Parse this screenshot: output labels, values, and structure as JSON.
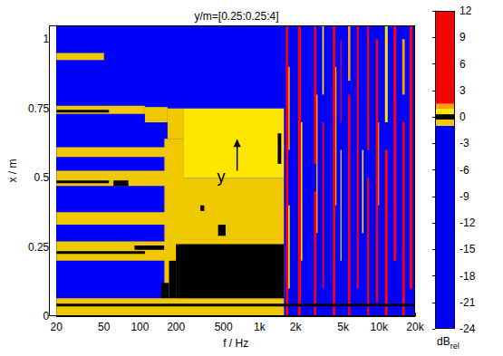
{
  "chart_data": {
    "type": "heatmap",
    "title": "y/m=[0.25:0.25:4]",
    "xlabel": "f / Hz",
    "ylabel": "x / m",
    "log": "x",
    "grid": false,
    "xlim": [
      20,
      20000
    ],
    "xticks": [
      20,
      50,
      100,
      200,
      500,
      {
        "value": 1000,
        "label": "1k"
      },
      {
        "value": 2000,
        "label": "2k"
      },
      {
        "value": 5000,
        "label": "5k"
      },
      {
        "value": 10000,
        "label": "10k"
      },
      {
        "value": 20000,
        "label": "20k"
      }
    ],
    "ylim": [
      0,
      1.05
    ],
    "yticks": [
      0,
      0.25,
      0.5,
      0.75,
      1
    ],
    "annotation": "y",
    "colorbar": {
      "label": "dB",
      "label_subscript": "rel",
      "range": [
        -24,
        12
      ],
      "ticks": [
        12,
        9,
        6,
        3,
        0,
        -3,
        -6,
        -9,
        -12,
        -15,
        -18,
        -21,
        -24
      ],
      "pieces": [
        {
          "range": [
            -24,
            -1
          ],
          "color": "#0000ff"
        },
        {
          "range": [
            -1,
            -0.3
          ],
          "color": "#f0c800"
        },
        {
          "range": [
            -0.3,
            0.3
          ],
          "color": "#000000"
        },
        {
          "range": [
            0.3,
            0.9
          ],
          "color": "#ffe600"
        },
        {
          "range": [
            0.9,
            1.5
          ],
          "color": "#ffa000"
        },
        {
          "range": [
            1.5,
            12
          ],
          "color": "#ff0000"
        }
      ]
    },
    "cells": [
      {
        "f": [
          20,
          20000
        ],
        "x": [
          0,
          1.05
        ],
        "value": -12
      },
      {
        "f": [
          20,
          50
        ],
        "x": [
          0.925,
          0.95
        ],
        "value": -0.6
      },
      {
        "f": [
          20,
          110
        ],
        "x": [
          0.73,
          0.76
        ],
        "value": -0.6
      },
      {
        "f": [
          110,
          170
        ],
        "x": [
          0.7,
          0.755
        ],
        "value": -0.6
      },
      {
        "f": [
          170,
          230
        ],
        "x": [
          0.64,
          0.75
        ],
        "value": -0.6
      },
      {
        "f": [
          20,
          55
        ],
        "x": [
          0.735,
          0.745
        ],
        "value": 0
      },
      {
        "f": [
          20,
          170
        ],
        "x": [
          0.575,
          0.61
        ],
        "value": -0.6
      },
      {
        "f": [
          20,
          165
        ],
        "x": [
          0.47,
          0.525
        ],
        "value": -0.6
      },
      {
        "f": [
          20,
          55
        ],
        "x": [
          0.48,
          0.49
        ],
        "value": 0
      },
      {
        "f": [
          60,
          80
        ],
        "x": [
          0.47,
          0.49
        ],
        "value": 0
      },
      {
        "f": [
          20,
          180
        ],
        "x": [
          0.33,
          0.375
        ],
        "value": -0.6
      },
      {
        "f": [
          20,
          200
        ],
        "x": [
          0.2,
          0.27
        ],
        "value": -0.6
      },
      {
        "f": [
          20,
          110
        ],
        "x": [
          0.225,
          0.235
        ],
        "value": 0
      },
      {
        "f": [
          90,
          160
        ],
        "x": [
          0.24,
          0.255
        ],
        "value": 0
      },
      {
        "f": [
          20,
          1600
        ],
        "x": [
          0,
          0.065
        ],
        "value": -0.6
      },
      {
        "f": [
          160,
          230
        ],
        "x": [
          0.065,
          0.64
        ],
        "value": -0.6
      },
      {
        "f": [
          200,
          1600
        ],
        "x": [
          0.065,
          0.5
        ],
        "value": -0.6
      },
      {
        "f": [
          230,
          1600
        ],
        "x": [
          0.5,
          0.75
        ],
        "value": 0.6
      },
      {
        "f": [
          150,
          175
        ],
        "x": [
          0.065,
          0.12
        ],
        "value": 0
      },
      {
        "f": [
          175,
          200
        ],
        "x": [
          0.065,
          0.2
        ],
        "value": 0
      },
      {
        "f": [
          200,
          1600
        ],
        "x": [
          0.065,
          0.26
        ],
        "value": 0
      },
      {
        "f": [
          450,
          520
        ],
        "x": [
          0.29,
          0.33
        ],
        "value": 0
      },
      {
        "f": [
          320,
          345
        ],
        "x": [
          0.38,
          0.4
        ],
        "value": 0
      },
      {
        "f": [
          1420,
          1520
        ],
        "x": [
          0.55,
          0.66
        ],
        "value": 0
      },
      {
        "f": [
          1660,
          1740
        ],
        "x": [
          0,
          1.05
        ],
        "value": 6
      },
      {
        "f": [
          1740,
          1790
        ],
        "x": [
          0.1,
          0.4
        ],
        "value": 0.6
      },
      {
        "f": [
          1740,
          1790
        ],
        "x": [
          0.6,
          0.9
        ],
        "value": 1.2
      },
      {
        "f": [
          2100,
          2220
        ],
        "x": [
          0,
          1.05
        ],
        "value": 6
      },
      {
        "f": [
          2220,
          2280
        ],
        "x": [
          0.2,
          0.7
        ],
        "value": 0.6
      },
      {
        "f": [
          2850,
          2980
        ],
        "x": [
          0,
          0.45
        ],
        "value": 6
      },
      {
        "f": [
          2850,
          2980
        ],
        "x": [
          0.55,
          1.05
        ],
        "value": 6
      },
      {
        "f": [
          2980,
          3060
        ],
        "x": [
          0.3,
          0.8
        ],
        "value": 1.2
      },
      {
        "f": [
          3350,
          3450
        ],
        "x": [
          0.1,
          0.7
        ],
        "value": 6
      },
      {
        "f": [
          3350,
          3450
        ],
        "x": [
          0.8,
          1.05
        ],
        "value": 0.6
      },
      {
        "f": [
          4100,
          4300
        ],
        "x": [
          0,
          1.05
        ],
        "value": 6
      },
      {
        "f": [
          4300,
          4400
        ],
        "x": [
          0.4,
          0.9
        ],
        "value": 1.2
      },
      {
        "f": [
          4750,
          4850
        ],
        "x": [
          0.2,
          0.6
        ],
        "value": 0.6
      },
      {
        "f": [
          4750,
          4850
        ],
        "x": [
          0.7,
          1.0
        ],
        "value": 6
      },
      {
        "f": [
          5500,
          5750
        ],
        "x": [
          0,
          0.8
        ],
        "value": 6
      },
      {
        "f": [
          5500,
          5750
        ],
        "x": [
          0.85,
          1.05
        ],
        "value": 1.2
      },
      {
        "f": [
          6500,
          6750
        ],
        "x": [
          0.1,
          1.05
        ],
        "value": 6
      },
      {
        "f": [
          7200,
          7400
        ],
        "x": [
          0.3,
          0.6
        ],
        "value": 0.6
      },
      {
        "f": [
          7950,
          8250
        ],
        "x": [
          0,
          0.5
        ],
        "value": 6
      },
      {
        "f": [
          7950,
          8250
        ],
        "x": [
          0.6,
          1.05
        ],
        "value": 6
      },
      {
        "f": [
          9400,
          9800
        ],
        "x": [
          0.05,
          1.0
        ],
        "value": 6
      },
      {
        "f": [
          9800,
          10000
        ],
        "x": [
          0.4,
          0.7
        ],
        "value": 1.2
      },
      {
        "f": [
          11200,
          11800
        ],
        "x": [
          0,
          0.6
        ],
        "value": 6
      },
      {
        "f": [
          11200,
          11800
        ],
        "x": [
          0.7,
          1.05
        ],
        "value": 0.6
      },
      {
        "f": [
          13200,
          13900
        ],
        "x": [
          0.2,
          1.05
        ],
        "value": 6
      },
      {
        "f": [
          15600,
          16400
        ],
        "x": [
          0,
          0.7
        ],
        "value": 6
      },
      {
        "f": [
          15600,
          16400
        ],
        "x": [
          0.8,
          1.0
        ],
        "value": 1.2
      },
      {
        "f": [
          18000,
          19000
        ],
        "x": [
          0.1,
          1.05
        ],
        "value": 6
      },
      {
        "f": [
          20,
          20000
        ],
        "x": [
          0.035,
          0.045
        ],
        "value": 0
      }
    ]
  }
}
